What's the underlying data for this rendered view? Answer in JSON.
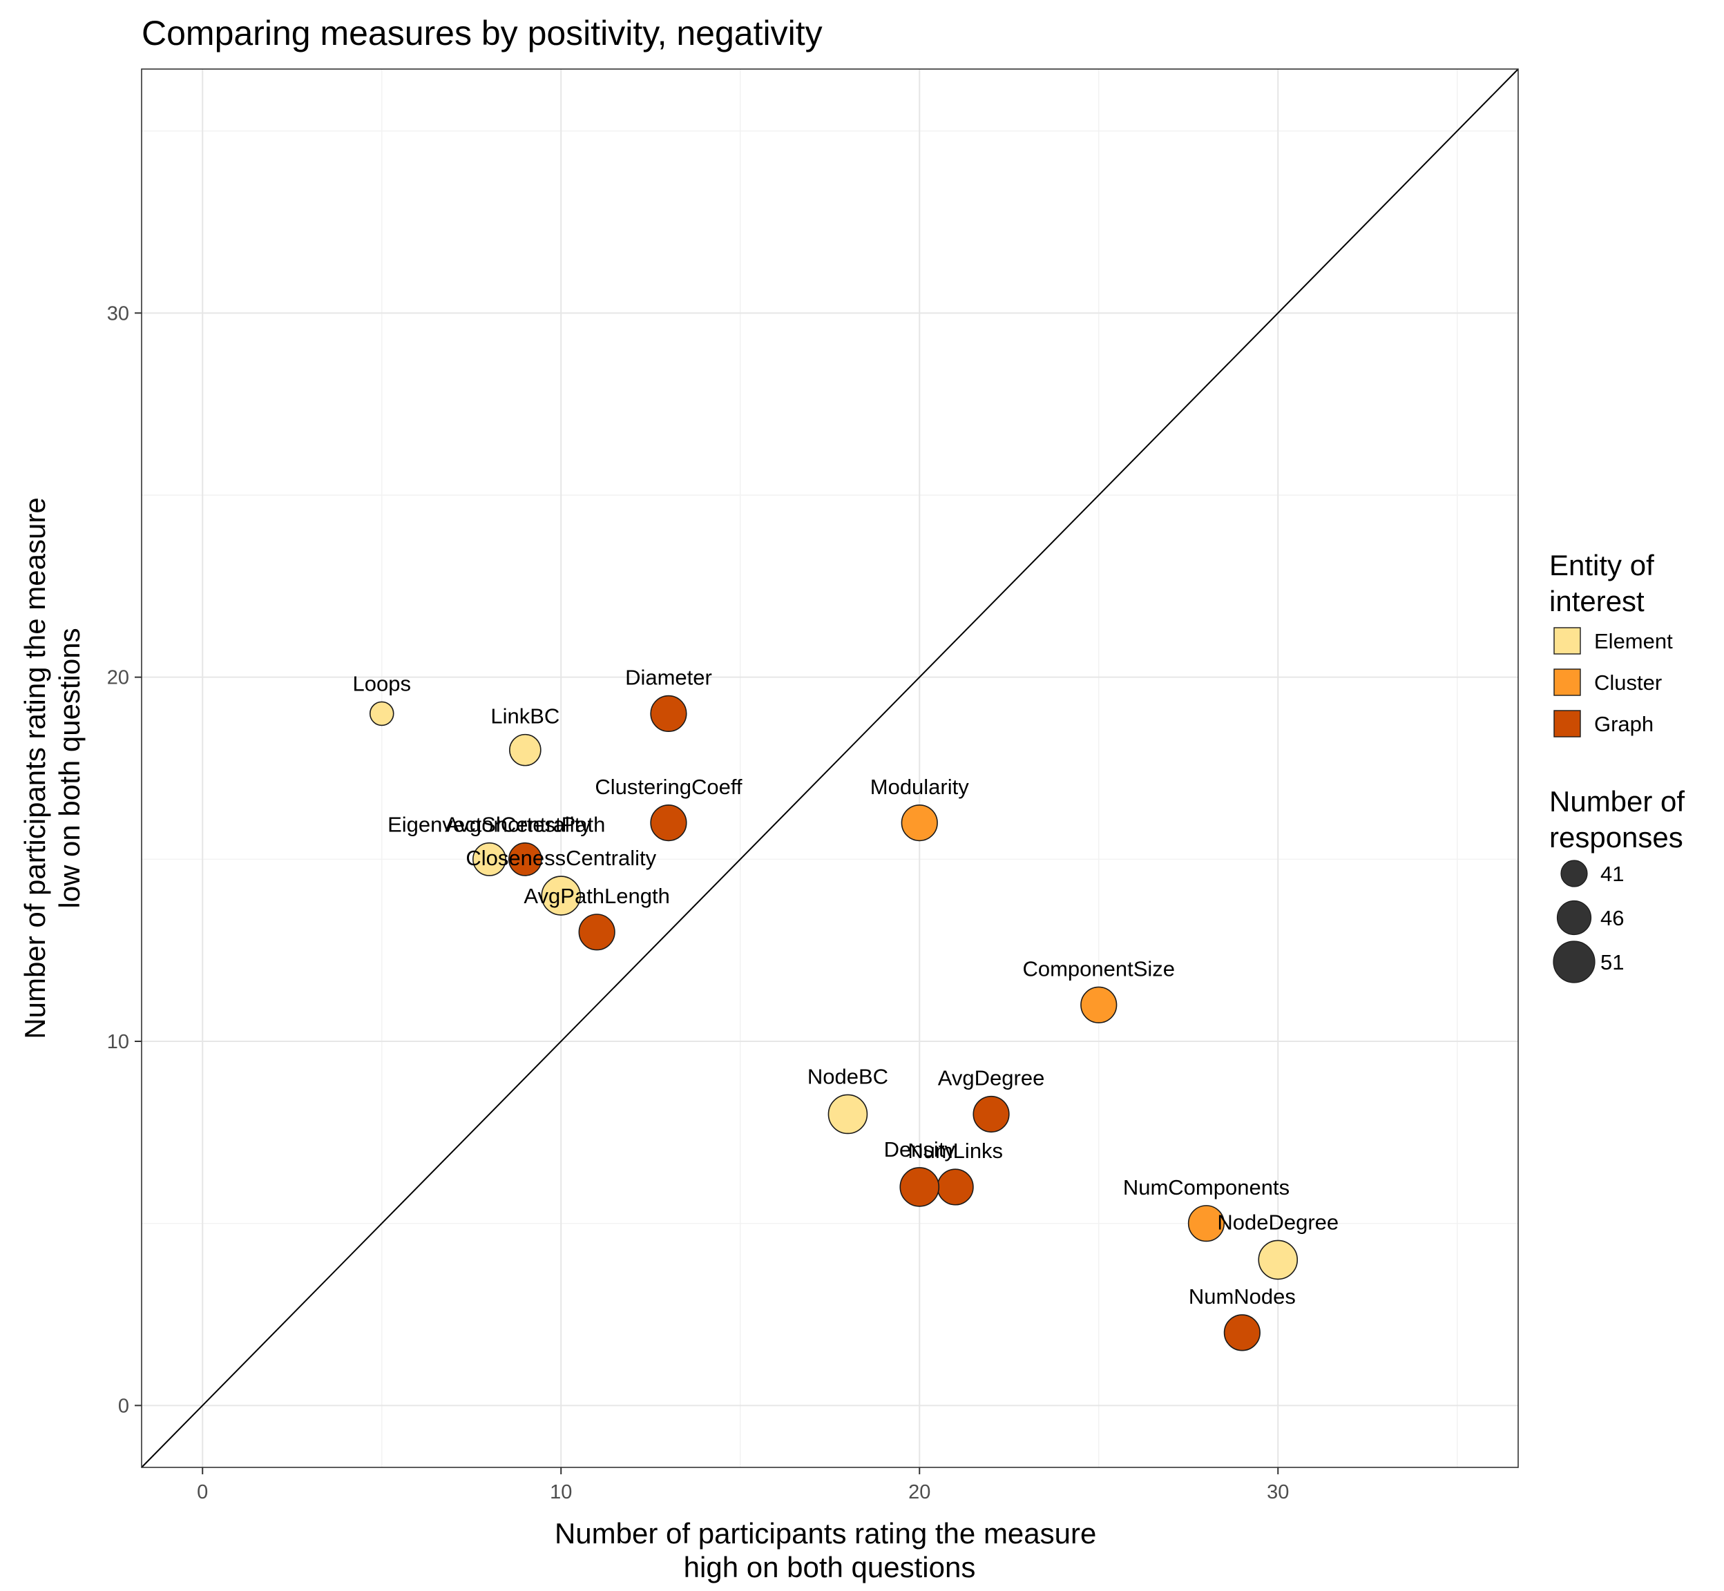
{
  "chart_data": {
    "type": "scatter",
    "title": "Comparing measures by positivity, negativity",
    "xlabel": [
      "Number of participants rating the measure",
      "high on both questions"
    ],
    "ylabel": [
      "Number of participants rating the measure",
      "low on both questions"
    ],
    "xlim": [
      -1.7,
      36.7
    ],
    "ylim": [
      -1.7,
      36.7
    ],
    "x_ticks": [
      0,
      10,
      20,
      30
    ],
    "y_ticks": [
      0,
      10,
      20,
      30
    ],
    "grid": true,
    "reference_line": "y = x",
    "legend_placement": "right",
    "points": [
      {
        "label": "Loops",
        "x": 5,
        "y": 19,
        "entity": "Element",
        "responses": 41
      },
      {
        "label": "LinkBC",
        "x": 9,
        "y": 18,
        "entity": "Element",
        "responses": 46
      },
      {
        "label": "Diameter",
        "x": 13,
        "y": 19,
        "entity": "Graph",
        "responses": 49
      },
      {
        "label": "ClusteringCoeff",
        "x": 13,
        "y": 16,
        "entity": "Graph",
        "responses": 49
      },
      {
        "label": "Modularity",
        "x": 20,
        "y": 16,
        "entity": "Cluster",
        "responses": 49
      },
      {
        "label": "EigenvectorCentrality",
        "x": 8,
        "y": 15,
        "entity": "Element",
        "responses": 47
      },
      {
        "label": "AvgShortestPath",
        "x": 9,
        "y": 15,
        "entity": "Graph",
        "responses": 47
      },
      {
        "label": "ClosenessCentrality",
        "x": 10,
        "y": 14,
        "entity": "Element",
        "responses": 51
      },
      {
        "label": "AvgPathLength",
        "x": 11,
        "y": 13,
        "entity": "Graph",
        "responses": 49
      },
      {
        "label": "ComponentSize",
        "x": 25,
        "y": 11,
        "entity": "Cluster",
        "responses": 49
      },
      {
        "label": "NodeBC",
        "x": 18,
        "y": 8,
        "entity": "Element",
        "responses": 51
      },
      {
        "label": "AvgDegree",
        "x": 22,
        "y": 8,
        "entity": "Graph",
        "responses": 49
      },
      {
        "label": "NumLinks",
        "x": 21,
        "y": 6,
        "entity": "Graph",
        "responses": 49
      },
      {
        "label": "Density",
        "x": 20,
        "y": 6,
        "entity": "Graph",
        "responses": 51
      },
      {
        "label": "NumComponents",
        "x": 28,
        "y": 5,
        "entity": "Cluster",
        "responses": 49
      },
      {
        "label": "NodeDegree",
        "x": 30,
        "y": 4,
        "entity": "Element",
        "responses": 51
      },
      {
        "label": "NumNodes",
        "x": 29,
        "y": 2,
        "entity": "Graph",
        "responses": 49
      }
    ],
    "legend": {
      "fill_title": [
        "Entity of",
        "interest"
      ],
      "fill_entries": [
        {
          "name": "Element",
          "color": "#fee391"
        },
        {
          "name": "Cluster",
          "color": "#fe9929"
        },
        {
          "name": "Graph",
          "color": "#cc4c02"
        }
      ],
      "size_title": [
        "Number of",
        "responses"
      ],
      "size_entries": [
        41,
        46,
        51
      ]
    }
  }
}
